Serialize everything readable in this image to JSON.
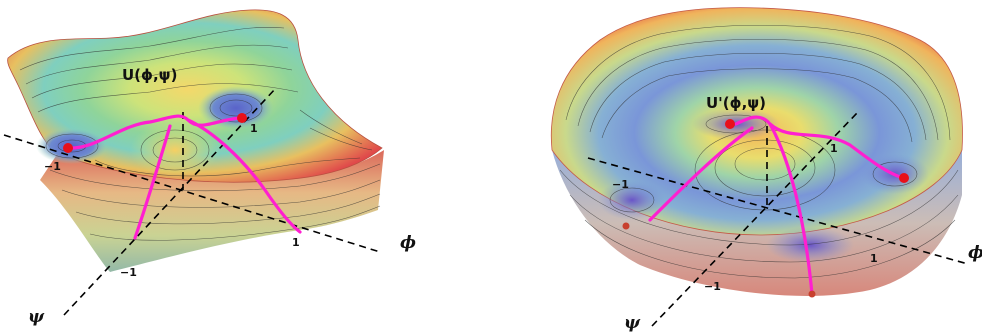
{
  "panels": [
    {
      "id": "left",
      "surface_label": "U(ϕ,ψ)",
      "axis_phi_label": "ϕ",
      "axis_psi_label": "ψ",
      "ticks": [
        "1",
        "1",
        "−1",
        "−1"
      ]
    },
    {
      "id": "right",
      "surface_label": "U'(ϕ,ψ)",
      "axis_phi_label": "ϕ",
      "axis_psi_label": "ψ",
      "ticks": [
        "1",
        "1",
        "−1",
        "−1"
      ]
    }
  ],
  "colors": {
    "path": "#ff1fd0",
    "minimum_marker": "#e8101a",
    "rim_top": "#e24a3e",
    "axis_dash": "#000000"
  }
}
